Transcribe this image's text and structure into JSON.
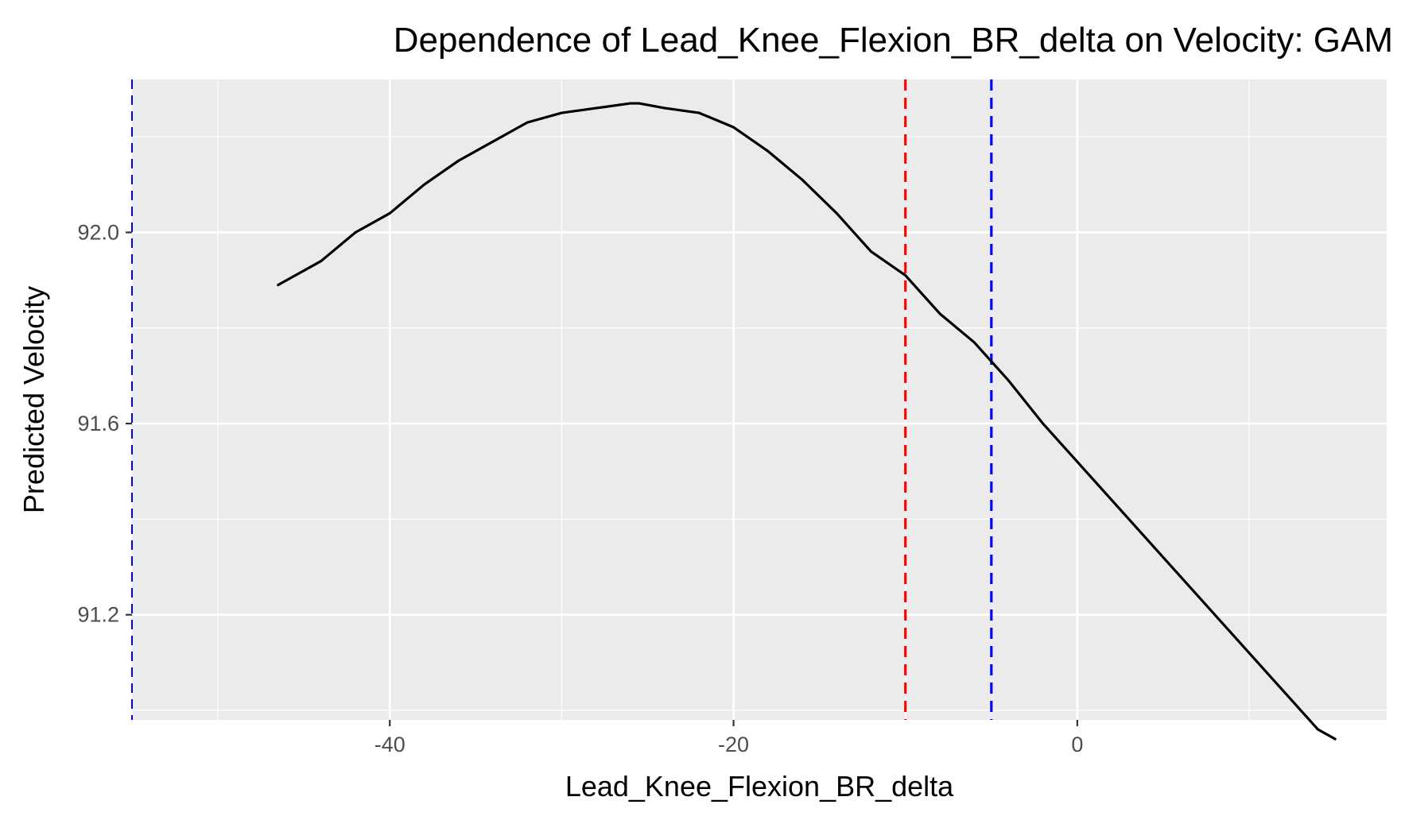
{
  "chart_data": {
    "type": "line",
    "title": "Dependence of Lead_Knee_Flexion_BR_delta on Velocity: GAM",
    "xlabel": "Lead_Knee_Flexion_BR_delta",
    "ylabel": "Predicted Velocity",
    "xlim": [
      -55,
      18
    ],
    "ylim": [
      90.98,
      92.32
    ],
    "x_ticks": [
      -40,
      -20,
      0
    ],
    "x_tick_labels": [
      "-40",
      "-20",
      "0"
    ],
    "y_ticks": [
      91.2,
      91.6,
      92.0
    ],
    "y_tick_labels": [
      "91.2",
      "91.6",
      "92.0"
    ],
    "grid": true,
    "background": "#ebebeb",
    "series": [
      {
        "color": "#000000",
        "x": [
          -46.5,
          -44,
          -42,
          -40,
          -38,
          -36,
          -34,
          -32,
          -30,
          -28,
          -26,
          -25.5,
          -24,
          -22,
          -20,
          -18,
          -16,
          -14,
          -12,
          -10,
          -8,
          -6,
          -4,
          -2,
          0,
          2,
          4,
          6,
          8,
          10,
          12,
          14,
          15
        ],
        "y": [
          91.89,
          91.94,
          92.0,
          92.04,
          92.1,
          92.15,
          92.19,
          92.23,
          92.25,
          92.26,
          92.27,
          92.27,
          92.26,
          92.25,
          92.22,
          92.17,
          92.11,
          92.04,
          91.96,
          91.91,
          91.83,
          91.77,
          91.69,
          91.6,
          91.52,
          91.44,
          91.36,
          91.28,
          91.2,
          91.12,
          91.04,
          90.96,
          90.94
        ]
      }
    ],
    "reference_lines": [
      {
        "x": -55,
        "color": "#0000ff",
        "style": "dashed"
      },
      {
        "x": -10,
        "color": "#ff0000",
        "style": "dashed"
      },
      {
        "x": -5,
        "color": "#0000ff",
        "style": "dashed"
      }
    ]
  }
}
